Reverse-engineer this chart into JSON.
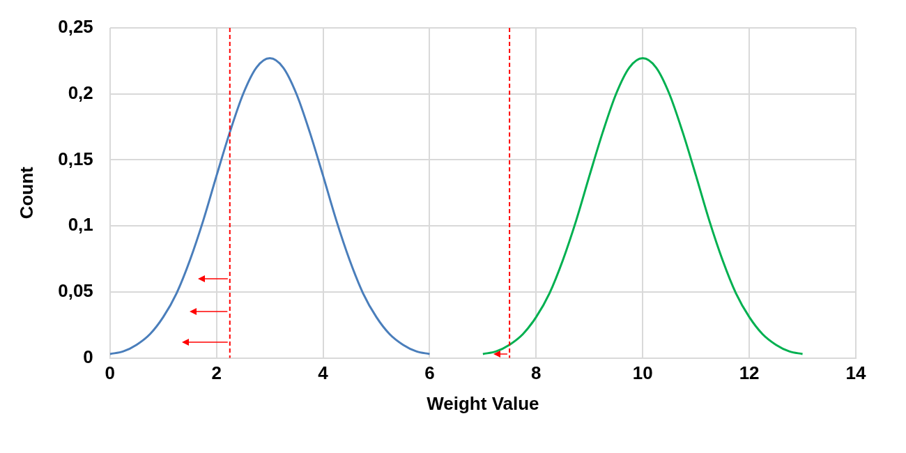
{
  "chart_data": {
    "type": "line",
    "xlabel": "Weight Value",
    "ylabel": "Count",
    "xlim": [
      0,
      14
    ],
    "xticks": [
      0,
      2,
      4,
      6,
      8,
      10,
      12,
      14
    ],
    "ylim": [
      0,
      0.25
    ],
    "yticks": [
      {
        "value": 0,
        "label": "0"
      },
      {
        "value": 0.05,
        "label": "0,05"
      },
      {
        "value": 0.1,
        "label": "0,1"
      },
      {
        "value": 0.15,
        "label": "0,15"
      },
      {
        "value": 0.2,
        "label": "0,2"
      },
      {
        "value": 0.25,
        "label": "0,25"
      }
    ],
    "grid": true,
    "legend": false,
    "marker": "none",
    "line_style": "solid",
    "series": [
      {
        "color": "#4a7ebb",
        "x": [
          0,
          0.25,
          0.5,
          0.75,
          1,
          1.25,
          1.5,
          1.75,
          2,
          2.25,
          2.5,
          2.75,
          3,
          3.25,
          3.5,
          3.75,
          4,
          4.25,
          4.5,
          4.75,
          5,
          5.25,
          5.5,
          5.75,
          6
        ],
        "values": [
          0.003,
          0.005,
          0.01,
          0.018,
          0.031,
          0.049,
          0.074,
          0.104,
          0.138,
          0.171,
          0.2,
          0.22,
          0.227,
          0.22,
          0.2,
          0.171,
          0.138,
          0.104,
          0.074,
          0.049,
          0.031,
          0.018,
          0.01,
          0.005,
          0.003
        ]
      },
      {
        "color": "#00b050",
        "x": [
          7,
          7.25,
          7.5,
          7.75,
          8,
          8.25,
          8.5,
          8.75,
          9,
          9.25,
          9.5,
          9.75,
          10,
          10.25,
          10.5,
          10.75,
          11,
          11.25,
          11.5,
          11.75,
          12,
          12.25,
          12.5,
          12.75,
          13
        ],
        "values": [
          0.003,
          0.005,
          0.01,
          0.018,
          0.031,
          0.049,
          0.074,
          0.104,
          0.138,
          0.171,
          0.2,
          0.22,
          0.227,
          0.22,
          0.2,
          0.171,
          0.138,
          0.104,
          0.074,
          0.049,
          0.031,
          0.018,
          0.01,
          0.005,
          0.003
        ]
      }
    ],
    "ref_lines": [
      {
        "axis": "x",
        "value": 2.25,
        "color": "#ff0000",
        "line_style": "dashed"
      },
      {
        "axis": "x",
        "value": 7.5,
        "color": "#ff0000",
        "line_style": "dashed"
      }
    ]
  }
}
